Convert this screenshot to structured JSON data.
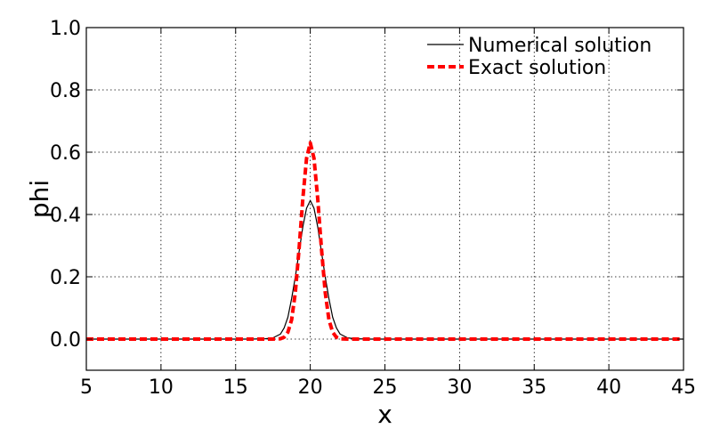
{
  "chart_data": {
    "type": "line",
    "title": "",
    "xlabel": "x",
    "ylabel": "phi",
    "xlim": [
      5,
      45
    ],
    "ylim": [
      -0.1,
      1.0
    ],
    "xticks": [
      5,
      10,
      15,
      20,
      25,
      30,
      35,
      40,
      45
    ],
    "yticks": [
      0.0,
      0.2,
      0.4,
      0.6,
      0.8,
      1.0
    ],
    "xtick_labels": [
      "5",
      "10",
      "15",
      "20",
      "25",
      "30",
      "35",
      "40",
      "45"
    ],
    "ytick_labels": [
      "0.0",
      "0.2",
      "0.4",
      "0.6",
      "0.8",
      "1.0"
    ],
    "grid": true,
    "legend_position": "top-right",
    "series": [
      {
        "name": "Numerical solution",
        "color": "#000000",
        "style": "solid",
        "x": [
          5,
          16,
          17,
          17.5,
          18,
          18.25,
          18.5,
          18.75,
          19,
          19.25,
          19.5,
          19.75,
          20,
          20.25,
          20.5,
          20.75,
          21,
          21.25,
          21.5,
          21.75,
          22,
          22.5,
          23,
          24,
          45
        ],
        "y": [
          0,
          0,
          0.001,
          0.004,
          0.016,
          0.036,
          0.07,
          0.13,
          0.2,
          0.28,
          0.36,
          0.42,
          0.445,
          0.42,
          0.36,
          0.28,
          0.2,
          0.13,
          0.07,
          0.036,
          0.016,
          0.004,
          0.001,
          0,
          0
        ]
      },
      {
        "name": "Exact solution",
        "color": "#ff0000",
        "style": "dashed",
        "x": [
          5,
          17.5,
          18,
          18.25,
          18.5,
          18.75,
          19,
          19.25,
          19.5,
          19.75,
          20,
          20.25,
          20.5,
          20.75,
          21,
          21.25,
          21.5,
          21.75,
          22,
          22.5,
          45
        ],
        "y": [
          0,
          0,
          0.001,
          0.006,
          0.022,
          0.062,
          0.15,
          0.29,
          0.45,
          0.58,
          0.63,
          0.58,
          0.45,
          0.29,
          0.15,
          0.062,
          0.022,
          0.006,
          0.001,
          0,
          0
        ]
      }
    ]
  }
}
